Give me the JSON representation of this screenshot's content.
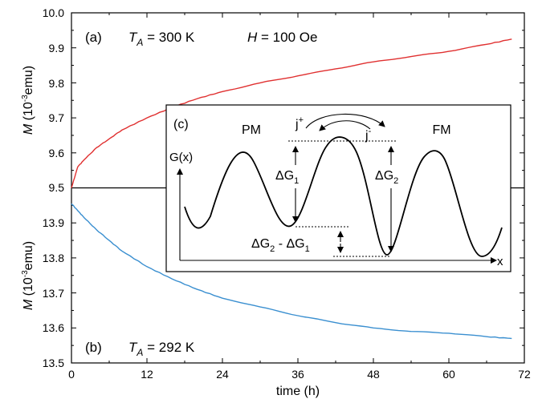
{
  "chart_data": [
    {
      "type": "line",
      "panel_label": "(a)",
      "annotation_parts": [
        "T",
        "A",
        " = 300 K",
        "H",
        " = 100 Oe"
      ],
      "ylabel_parts": [
        "M",
        " (10",
        "-3",
        "emu)"
      ],
      "ylim": [
        9.5,
        10.0
      ],
      "yticks": [
        "9.5",
        "9.6",
        "9.7",
        "9.8",
        "9.9",
        "10.0"
      ],
      "xlim": [
        0,
        72
      ],
      "series": [
        {
          "color": "#e03030",
          "x": [
            0,
            1,
            2,
            4,
            6,
            8,
            12,
            16,
            20,
            24,
            30,
            36,
            42,
            48,
            54,
            60,
            66,
            70
          ],
          "y": [
            9.5,
            9.56,
            9.58,
            9.615,
            9.64,
            9.665,
            9.7,
            9.73,
            9.755,
            9.775,
            9.8,
            9.82,
            9.84,
            9.86,
            9.875,
            9.89,
            9.91,
            9.925
          ]
        }
      ]
    },
    {
      "type": "line",
      "panel_label": "(b)",
      "annotation_parts": [
        "T",
        "A",
        " = 292 K"
      ],
      "ylabel_parts": [
        "M",
        " (10",
        "-3",
        "emu)"
      ],
      "ylim": [
        13.5,
        14.0
      ],
      "yticks": [
        "13.5",
        "13.6",
        "13.7",
        "13.8",
        "13.9"
      ],
      "xlabel": "time (h)",
      "xlim": [
        0,
        72
      ],
      "xticks": [
        "0",
        "12",
        "24",
        "36",
        "48",
        "60",
        "72"
      ],
      "series": [
        {
          "color": "#3a8fd0",
          "x": [
            0,
            1,
            2,
            4,
            6,
            8,
            12,
            16,
            20,
            24,
            30,
            36,
            42,
            48,
            54,
            60,
            66,
            70
          ],
          "y": [
            13.955,
            13.935,
            13.915,
            13.88,
            13.85,
            13.82,
            13.775,
            13.74,
            13.71,
            13.685,
            13.66,
            13.635,
            13.615,
            13.6,
            13.59,
            13.585,
            13.575,
            13.57
          ]
        }
      ]
    }
  ],
  "inset": {
    "label": "(c)",
    "left_phase": "PM",
    "right_phase": "FM",
    "ylabel": "G(x)",
    "xlabel": "x",
    "j_plus": [
      "j",
      "+"
    ],
    "j_minus": [
      "j",
      "-"
    ],
    "dg1": [
      "ΔG",
      "1"
    ],
    "dg2": [
      "ΔG",
      "2"
    ],
    "dg_diff": [
      "ΔG",
      "2",
      " - ΔG",
      "1"
    ]
  }
}
